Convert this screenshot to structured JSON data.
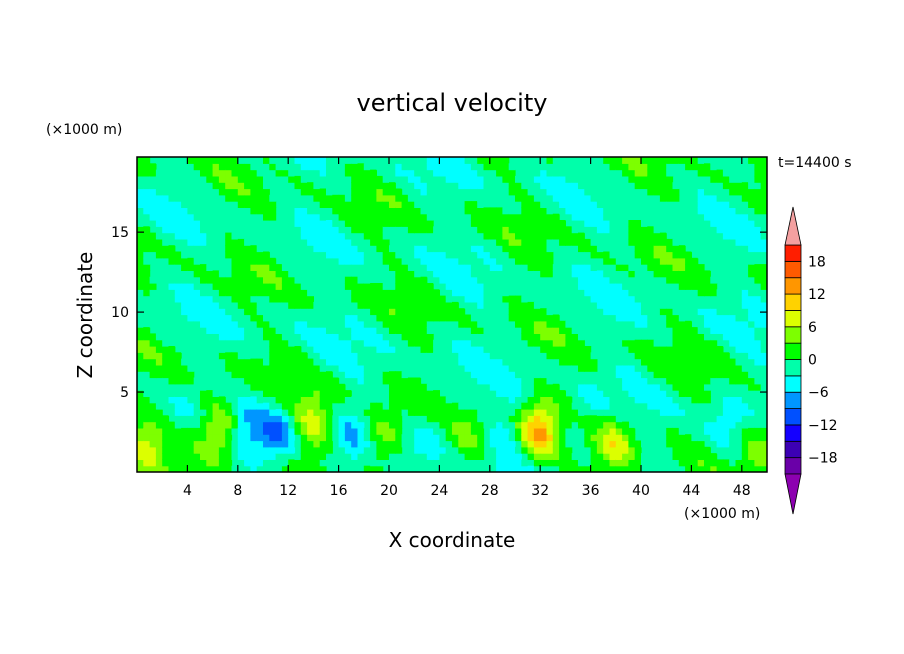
{
  "chart_data": {
    "type": "heatmap",
    "title": "vertical velocity",
    "xlabel": "X coordinate",
    "ylabel": "Z coordinate",
    "x_unit": "(×1000 m)",
    "y_unit": "(×1000 m)",
    "time_label": "t=14400 s",
    "xlim": [
      0,
      50
    ],
    "ylim": [
      0,
      19.7
    ],
    "x_ticks": [
      4,
      8,
      12,
      16,
      20,
      24,
      28,
      32,
      36,
      40,
      44,
      48
    ],
    "y_ticks": [
      5,
      10,
      15
    ],
    "grid": false,
    "colorbar": {
      "levels": [
        -21,
        -18,
        -15,
        -12,
        -9,
        -6,
        -3,
        0,
        3,
        6,
        9,
        12,
        15,
        18,
        21
      ],
      "tick_labels": [
        18,
        12,
        6,
        0,
        -6,
        -12,
        -18
      ],
      "colors": [
        "#6a00a8",
        "#3c00b4",
        "#1400ff",
        "#0050ff",
        "#0096ff",
        "#00ffff",
        "#00ffaa",
        "#00ff00",
        "#7dff00",
        "#dcff00",
        "#ffd200",
        "#ff9600",
        "#ff5a00",
        "#ff1e00"
      ],
      "under_color": "#8c00b0",
      "over_color": "#f4a0a0",
      "extend": "both"
    },
    "features": [
      {
        "x": 0.8,
        "z": 1.7,
        "value": 6
      },
      {
        "x": 2.3,
        "z": 2.5,
        "value": -3
      },
      {
        "x": 6.5,
        "z": 2.8,
        "value": 9
      },
      {
        "x": 9.0,
        "z": 2.6,
        "value": -5
      },
      {
        "x": 11.2,
        "z": 2.3,
        "value": -8
      },
      {
        "x": 14.0,
        "z": 3.1,
        "value": 7
      },
      {
        "x": 17.0,
        "z": 2.3,
        "value": -4
      },
      {
        "x": 19.4,
        "z": 1.8,
        "value": 6
      },
      {
        "x": 23.0,
        "z": 2.2,
        "value": -5
      },
      {
        "x": 26.5,
        "z": 2.0,
        "value": 3
      },
      {
        "x": 29.3,
        "z": 2.5,
        "value": -4
      },
      {
        "x": 31.8,
        "z": 2.6,
        "value": 11
      },
      {
        "x": 35.0,
        "z": 2.5,
        "value": -4
      },
      {
        "x": 38.0,
        "z": 1.8,
        "value": 7
      },
      {
        "x": 46.5,
        "z": 2.5,
        "value": -5
      },
      {
        "x": 49.5,
        "z": 2.0,
        "value": 5
      }
    ],
    "background_value": -1
  }
}
